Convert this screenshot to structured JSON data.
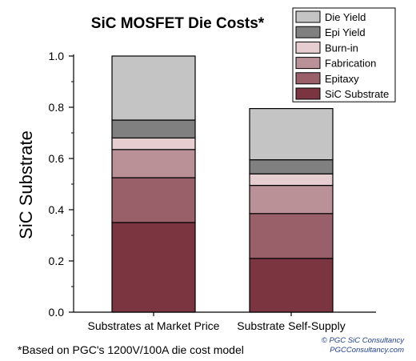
{
  "chart_data": {
    "type": "bar",
    "stacked": true,
    "title": "SiC MOSFET Die Costs*",
    "xlabel": "",
    "ylabel": "SiC Substrate",
    "ylim": [
      0,
      1.0
    ],
    "yticks": [
      "0.0",
      "0.2",
      "0.4",
      "0.6",
      "0.8",
      "1.0"
    ],
    "categories": [
      "Substrates at Market Price",
      "Substrate Self-Supply"
    ],
    "series": [
      {
        "name": "SiC Substrate",
        "color": "#7a3540",
        "values": [
          0.35,
          0.21
        ]
      },
      {
        "name": "Epitaxy",
        "color": "#996069",
        "values": [
          0.175,
          0.175
        ]
      },
      {
        "name": "Fabrication",
        "color": "#b99197",
        "values": [
          0.11,
          0.11
        ]
      },
      {
        "name": "Burn-in",
        "color": "#e5cdd0",
        "values": [
          0.045,
          0.045
        ]
      },
      {
        "name": "Epi Yield",
        "color": "#808080",
        "values": [
          0.07,
          0.055
        ]
      },
      {
        "name": "Die Yield",
        "color": "#c4c4c4",
        "values": [
          0.25,
          0.2
        ]
      }
    ],
    "legend_position": "top-right",
    "grid": false
  },
  "footnote": "*Based on PGC's 1200V/100A die cost model",
  "credit": {
    "line1": "© PGC SiC Consultancy",
    "line2": "PGCConsultancy.com"
  }
}
